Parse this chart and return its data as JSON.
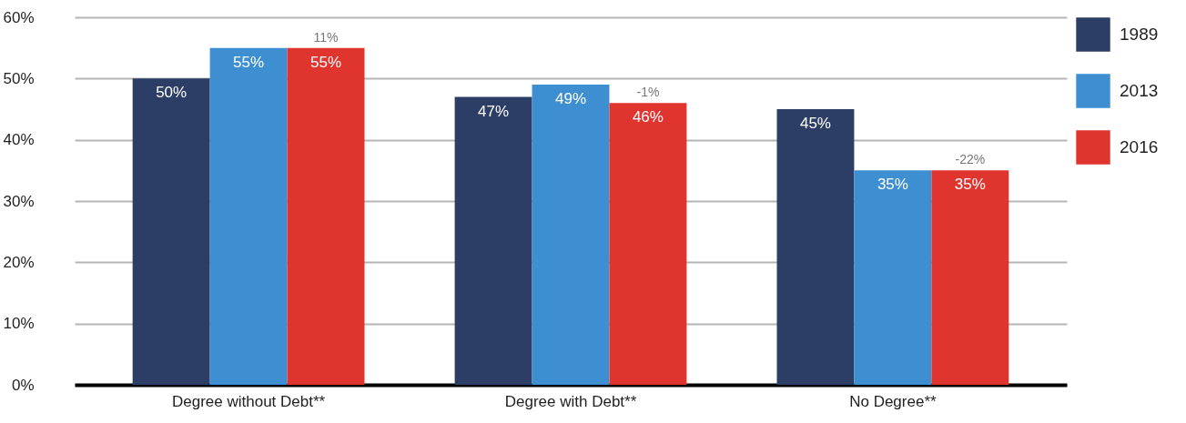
{
  "chart_data": {
    "type": "bar",
    "categories": [
      "Degree without Debt**",
      "Degree with Debt**",
      "No Degree**"
    ],
    "series": [
      {
        "name": "1989",
        "color": "#2c3e66",
        "values": [
          50,
          47,
          45
        ],
        "value_labels": [
          "50%",
          "47%",
          "45%"
        ]
      },
      {
        "name": "2013",
        "color": "#3d8fd1",
        "values": [
          55,
          49,
          35
        ],
        "value_labels": [
          "55%",
          "49%",
          "35%"
        ]
      },
      {
        "name": "2016",
        "color": "#e0352f",
        "values": [
          55,
          46,
          35
        ],
        "value_labels": [
          "55%",
          "46%",
          "35%"
        ]
      }
    ],
    "ylim": [
      0,
      60
    ],
    "yticks": [
      {
        "value": 0,
        "label": "0%"
      },
      {
        "value": 10,
        "label": "10%"
      },
      {
        "value": 20,
        "label": "20%"
      },
      {
        "value": 30,
        "label": "30%"
      },
      {
        "value": 40,
        "label": "40%"
      },
      {
        "value": 50,
        "label": "50%"
      },
      {
        "value": 60,
        "label": "60%"
      }
    ],
    "grid": "y",
    "legend": "top right",
    "annotations": [
      "11%",
      "-1%",
      "-22%"
    ]
  }
}
